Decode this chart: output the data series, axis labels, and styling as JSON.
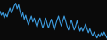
{
  "line_color": "#3d9de0",
  "background_color": "#0a0a0a",
  "linewidth": 0.8,
  "values": [
    0.72,
    0.62,
    0.68,
    0.55,
    0.65,
    0.58,
    0.7,
    0.8,
    0.68,
    0.75,
    0.85,
    0.92,
    0.78,
    0.88,
    0.72,
    0.58,
    0.68,
    0.52,
    0.62,
    0.48,
    0.38,
    0.5,
    0.6,
    0.45,
    0.55,
    0.42,
    0.32,
    0.45,
    0.55,
    0.42,
    0.3,
    0.42,
    0.55,
    0.42,
    0.3,
    0.42,
    0.52,
    0.38,
    0.25,
    0.38,
    0.5,
    0.6,
    0.45,
    0.35,
    0.48,
    0.6,
    0.48,
    0.35,
    0.25,
    0.38,
    0.5,
    0.38,
    0.25,
    0.35,
    0.48,
    0.35,
    0.22,
    0.32,
    0.22,
    0.3,
    0.4,
    0.28,
    0.18,
    0.28,
    0.18,
    0.1,
    0.2,
    0.12,
    0.05,
    0.15,
    0.08,
    0.18,
    0.1,
    0.2,
    0.12,
    0.05
  ]
}
